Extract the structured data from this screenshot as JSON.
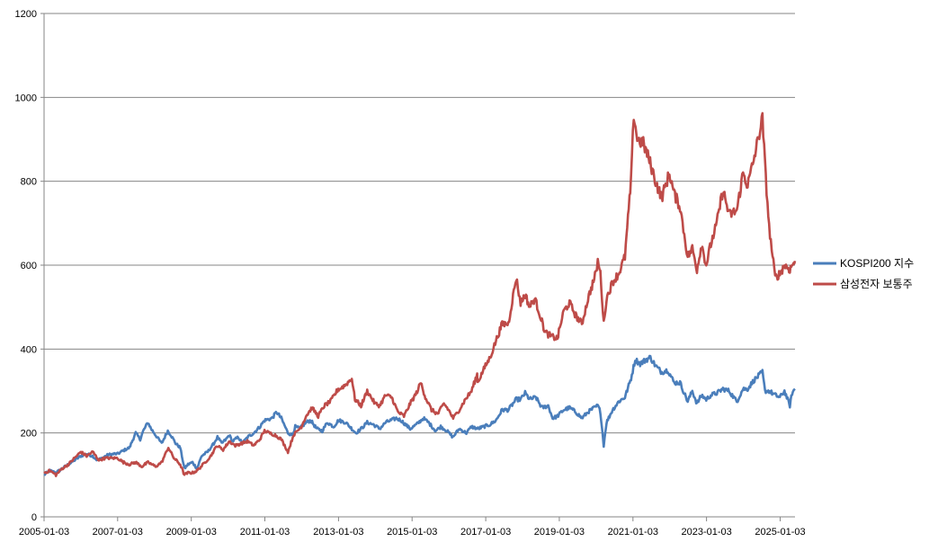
{
  "chart_data": {
    "type": "line",
    "title": "",
    "xlabel": "",
    "ylabel": "",
    "ylim": [
      0,
      1200
    ],
    "y_ticks": [
      0,
      200,
      400,
      600,
      800,
      1000,
      1200
    ],
    "x_ticks": [
      "2005-01-03",
      "2007-01-03",
      "2009-01-03",
      "2011-01-03",
      "2013-01-03",
      "2015-01-03",
      "2017-01-03",
      "2019-01-03",
      "2021-01-03",
      "2023-01-03",
      "2025-01-03"
    ],
    "x_range": [
      "2005-01-03",
      "2025-05-30"
    ],
    "grid": "horizontal",
    "legend_position": "right",
    "series": [
      {
        "name": "KOSPI200 지수",
        "color": "#4a7ebb",
        "points": [
          [
            "2005-01-03",
            100
          ],
          [
            "2005-03-01",
            110
          ],
          [
            "2005-05-01",
            105
          ],
          [
            "2005-07-01",
            115
          ],
          [
            "2005-09-01",
            125
          ],
          [
            "2005-11-01",
            135
          ],
          [
            "2006-01-03",
            145
          ],
          [
            "2006-03-01",
            150
          ],
          [
            "2006-05-01",
            145
          ],
          [
            "2006-06-15",
            135
          ],
          [
            "2006-08-01",
            140
          ],
          [
            "2006-10-01",
            148
          ],
          [
            "2006-12-01",
            150
          ],
          [
            "2007-01-03",
            150
          ],
          [
            "2007-03-01",
            158
          ],
          [
            "2007-05-01",
            165
          ],
          [
            "2007-07-01",
            200
          ],
          [
            "2007-08-15",
            185
          ],
          [
            "2007-09-15",
            205
          ],
          [
            "2007-10-31",
            225
          ],
          [
            "2007-12-01",
            210
          ],
          [
            "2008-01-15",
            195
          ],
          [
            "2008-03-15",
            175
          ],
          [
            "2008-05-15",
            205
          ],
          [
            "2008-06-15",
            195
          ],
          [
            "2008-08-01",
            175
          ],
          [
            "2008-09-15",
            165
          ],
          [
            "2008-10-27",
            115
          ],
          [
            "2008-12-01",
            125
          ],
          [
            "2009-01-15",
            130
          ],
          [
            "2009-03-01",
            115
          ],
          [
            "2009-04-15",
            145
          ],
          [
            "2009-06-15",
            155
          ],
          [
            "2009-08-15",
            175
          ],
          [
            "2009-09-20",
            190
          ],
          [
            "2009-11-01",
            175
          ],
          [
            "2009-12-15",
            185
          ],
          [
            "2010-01-15",
            195
          ],
          [
            "2010-02-15",
            180
          ],
          [
            "2010-04-15",
            190
          ],
          [
            "2010-05-25",
            175
          ],
          [
            "2010-07-15",
            190
          ],
          [
            "2010-09-15",
            200
          ],
          [
            "2010-11-15",
            215
          ],
          [
            "2010-12-31",
            230
          ],
          [
            "2011-03-15",
            235
          ],
          [
            "2011-04-30",
            250
          ],
          [
            "2011-06-15",
            235
          ],
          [
            "2011-08-20",
            200
          ],
          [
            "2011-10-01",
            195
          ],
          [
            "2011-11-01",
            215
          ],
          [
            "2011-12-15",
            210
          ],
          [
            "2012-02-15",
            225
          ],
          [
            "2012-04-01",
            230
          ],
          [
            "2012-06-01",
            210
          ],
          [
            "2012-07-25",
            205
          ],
          [
            "2012-09-15",
            225
          ],
          [
            "2012-11-15",
            215
          ],
          [
            "2013-01-03",
            230
          ],
          [
            "2013-03-15",
            225
          ],
          [
            "2013-06-25",
            200
          ],
          [
            "2013-08-15",
            210
          ],
          [
            "2013-10-15",
            225
          ],
          [
            "2013-12-15",
            220
          ],
          [
            "2014-02-15",
            210
          ],
          [
            "2014-04-15",
            225
          ],
          [
            "2014-07-30",
            235
          ],
          [
            "2014-09-15",
            230
          ],
          [
            "2014-12-15",
            210
          ],
          [
            "2015-02-15",
            220
          ],
          [
            "2015-04-25",
            235
          ],
          [
            "2015-06-15",
            225
          ],
          [
            "2015-08-25",
            205
          ],
          [
            "2015-10-15",
            215
          ],
          [
            "2015-12-15",
            205
          ],
          [
            "2016-02-12",
            190
          ],
          [
            "2016-04-15",
            210
          ],
          [
            "2016-06-25",
            200
          ],
          [
            "2016-08-15",
            215
          ],
          [
            "2016-10-15",
            210
          ],
          [
            "2016-12-15",
            215
          ],
          [
            "2017-02-15",
            220
          ],
          [
            "2017-04-15",
            230
          ],
          [
            "2017-06-15",
            255
          ],
          [
            "2017-08-15",
            255
          ],
          [
            "2017-11-01",
            280
          ],
          [
            "2017-12-15",
            280
          ],
          [
            "2018-01-29",
            295
          ],
          [
            "2018-03-15",
            280
          ],
          [
            "2018-05-15",
            285
          ],
          [
            "2018-07-15",
            260
          ],
          [
            "2018-09-15",
            265
          ],
          [
            "2018-10-29",
            235
          ],
          [
            "2018-12-15",
            240
          ],
          [
            "2019-02-15",
            255
          ],
          [
            "2019-04-15",
            260
          ],
          [
            "2019-06-15",
            250
          ],
          [
            "2019-08-15",
            235
          ],
          [
            "2019-10-15",
            250
          ],
          [
            "2019-12-15",
            260
          ],
          [
            "2020-01-20",
            265
          ],
          [
            "2020-02-15",
            250
          ],
          [
            "2020-03-19",
            170
          ],
          [
            "2020-04-15",
            225
          ],
          [
            "2020-06-15",
            255
          ],
          [
            "2020-08-15",
            275
          ],
          [
            "2020-10-15",
            285
          ],
          [
            "2020-12-15",
            330
          ],
          [
            "2021-01-25",
            375
          ],
          [
            "2021-03-15",
            365
          ],
          [
            "2021-05-15",
            375
          ],
          [
            "2021-06-25",
            380
          ],
          [
            "2021-08-15",
            360
          ],
          [
            "2021-10-15",
            345
          ],
          [
            "2021-12-15",
            350
          ],
          [
            "2022-02-15",
            320
          ],
          [
            "2022-04-15",
            320
          ],
          [
            "2022-06-30",
            275
          ],
          [
            "2022-08-15",
            300
          ],
          [
            "2022-09-30",
            270
          ],
          [
            "2022-11-15",
            290
          ],
          [
            "2022-12-31",
            280
          ],
          [
            "2023-02-15",
            290
          ],
          [
            "2023-04-15",
            295
          ],
          [
            "2023-06-15",
            305
          ],
          [
            "2023-08-15",
            300
          ],
          [
            "2023-10-31",
            275
          ],
          [
            "2023-12-31",
            305
          ],
          [
            "2024-02-15",
            305
          ],
          [
            "2024-04-15",
            325
          ],
          [
            "2024-07-11",
            345
          ],
          [
            "2024-08-05",
            300
          ],
          [
            "2024-09-15",
            300
          ],
          [
            "2024-11-15",
            290
          ],
          [
            "2024-12-31",
            285
          ],
          [
            "2025-02-15",
            300
          ],
          [
            "2025-04-09",
            265
          ],
          [
            "2025-05-01",
            295
          ],
          [
            "2025-05-30",
            305
          ]
        ]
      },
      {
        "name": "삼성전자 보통주",
        "color": "#be4b48",
        "points": [
          [
            "2005-01-03",
            105
          ],
          [
            "2005-03-01",
            110
          ],
          [
            "2005-05-01",
            100
          ],
          [
            "2005-07-01",
            115
          ],
          [
            "2005-09-01",
            125
          ],
          [
            "2005-11-01",
            140
          ],
          [
            "2006-01-03",
            155
          ],
          [
            "2006-03-01",
            145
          ],
          [
            "2006-05-01",
            155
          ],
          [
            "2006-07-01",
            135
          ],
          [
            "2006-09-01",
            140
          ],
          [
            "2006-11-01",
            140
          ],
          [
            "2007-01-03",
            140
          ],
          [
            "2007-03-01",
            130
          ],
          [
            "2007-05-01",
            125
          ],
          [
            "2007-07-01",
            130
          ],
          [
            "2007-09-01",
            120
          ],
          [
            "2007-11-01",
            130
          ],
          [
            "2008-01-15",
            120
          ],
          [
            "2008-03-15",
            130
          ],
          [
            "2008-05-20",
            165
          ],
          [
            "2008-07-15",
            140
          ],
          [
            "2008-09-15",
            125
          ],
          [
            "2008-10-27",
            100
          ],
          [
            "2008-12-01",
            105
          ],
          [
            "2009-01-15",
            105
          ],
          [
            "2009-03-01",
            110
          ],
          [
            "2009-05-01",
            125
          ],
          [
            "2009-07-15",
            145
          ],
          [
            "2009-09-15",
            170
          ],
          [
            "2009-11-15",
            160
          ],
          [
            "2010-01-15",
            180
          ],
          [
            "2010-03-15",
            170
          ],
          [
            "2010-05-15",
            175
          ],
          [
            "2010-07-15",
            180
          ],
          [
            "2010-09-15",
            170
          ],
          [
            "2010-11-15",
            185
          ],
          [
            "2010-12-31",
            205
          ],
          [
            "2011-02-15",
            200
          ],
          [
            "2011-04-15",
            195
          ],
          [
            "2011-06-15",
            185
          ],
          [
            "2011-08-20",
            155
          ],
          [
            "2011-10-15",
            195
          ],
          [
            "2011-12-31",
            215
          ],
          [
            "2012-02-15",
            240
          ],
          [
            "2012-04-15",
            260
          ],
          [
            "2012-06-15",
            240
          ],
          [
            "2012-08-15",
            265
          ],
          [
            "2012-10-15",
            275
          ],
          [
            "2012-12-31",
            305
          ],
          [
            "2013-01-15",
            305
          ],
          [
            "2013-03-15",
            315
          ],
          [
            "2013-05-15",
            330
          ],
          [
            "2013-06-15",
            280
          ],
          [
            "2013-08-15",
            265
          ],
          [
            "2013-10-15",
            300
          ],
          [
            "2013-12-31",
            270
          ],
          [
            "2014-02-15",
            265
          ],
          [
            "2014-04-15",
            290
          ],
          [
            "2014-06-15",
            285
          ],
          [
            "2014-08-15",
            250
          ],
          [
            "2014-10-15",
            240
          ],
          [
            "2014-12-15",
            270
          ],
          [
            "2015-02-15",
            295
          ],
          [
            "2015-03-31",
            320
          ],
          [
            "2015-05-15",
            285
          ],
          [
            "2015-07-15",
            255
          ],
          [
            "2015-09-15",
            245
          ],
          [
            "2015-11-15",
            270
          ],
          [
            "2015-12-31",
            255
          ],
          [
            "2016-02-15",
            235
          ],
          [
            "2016-04-15",
            255
          ],
          [
            "2016-06-15",
            280
          ],
          [
            "2016-08-15",
            300
          ],
          [
            "2016-10-10",
            340
          ],
          [
            "2016-10-14",
            320
          ],
          [
            "2016-12-31",
            360
          ],
          [
            "2017-02-15",
            380
          ],
          [
            "2017-04-15",
            420
          ],
          [
            "2017-06-15",
            460
          ],
          [
            "2017-08-15",
            460
          ],
          [
            "2017-11-01",
            570
          ],
          [
            "2017-12-15",
            510
          ],
          [
            "2018-01-29",
            530
          ],
          [
            "2018-03-15",
            500
          ],
          [
            "2018-05-04",
            520
          ],
          [
            "2018-06-15",
            490
          ],
          [
            "2018-08-15",
            440
          ],
          [
            "2018-10-15",
            430
          ],
          [
            "2018-12-15",
            425
          ],
          [
            "2019-02-15",
            490
          ],
          [
            "2019-04-15",
            510
          ],
          [
            "2019-06-15",
            480
          ],
          [
            "2019-08-15",
            460
          ],
          [
            "2019-10-15",
            520
          ],
          [
            "2019-12-31",
            580
          ],
          [
            "2020-01-20",
            610
          ],
          [
            "2020-02-15",
            580
          ],
          [
            "2020-03-19",
            460
          ],
          [
            "2020-04-15",
            520
          ],
          [
            "2020-06-15",
            560
          ],
          [
            "2020-08-15",
            580
          ],
          [
            "2020-10-15",
            620
          ],
          [
            "2020-12-15",
            800
          ],
          [
            "2021-01-11",
            960
          ],
          [
            "2021-02-15",
            900
          ],
          [
            "2021-04-15",
            890
          ],
          [
            "2021-06-15",
            850
          ],
          [
            "2021-08-15",
            800
          ],
          [
            "2021-10-15",
            760
          ],
          [
            "2021-12-31",
            820
          ],
          [
            "2022-02-15",
            770
          ],
          [
            "2022-04-15",
            740
          ],
          [
            "2022-06-30",
            620
          ],
          [
            "2022-08-15",
            640
          ],
          [
            "2022-09-30",
            590
          ],
          [
            "2022-11-15",
            650
          ],
          [
            "2022-12-31",
            600
          ],
          [
            "2023-02-15",
            650
          ],
          [
            "2023-04-15",
            700
          ],
          [
            "2023-06-15",
            780
          ],
          [
            "2023-08-15",
            720
          ],
          [
            "2023-10-31",
            730
          ],
          [
            "2023-12-31",
            820
          ],
          [
            "2024-02-15",
            790
          ],
          [
            "2024-04-15",
            850
          ],
          [
            "2024-07-11",
            950
          ],
          [
            "2024-08-05",
            840
          ],
          [
            "2024-09-15",
            690
          ],
          [
            "2024-11-14",
            570
          ],
          [
            "2024-12-31",
            580
          ],
          [
            "2025-02-15",
            600
          ],
          [
            "2025-04-09",
            590
          ],
          [
            "2025-05-01",
            600
          ],
          [
            "2025-05-30",
            610
          ]
        ]
      }
    ]
  }
}
